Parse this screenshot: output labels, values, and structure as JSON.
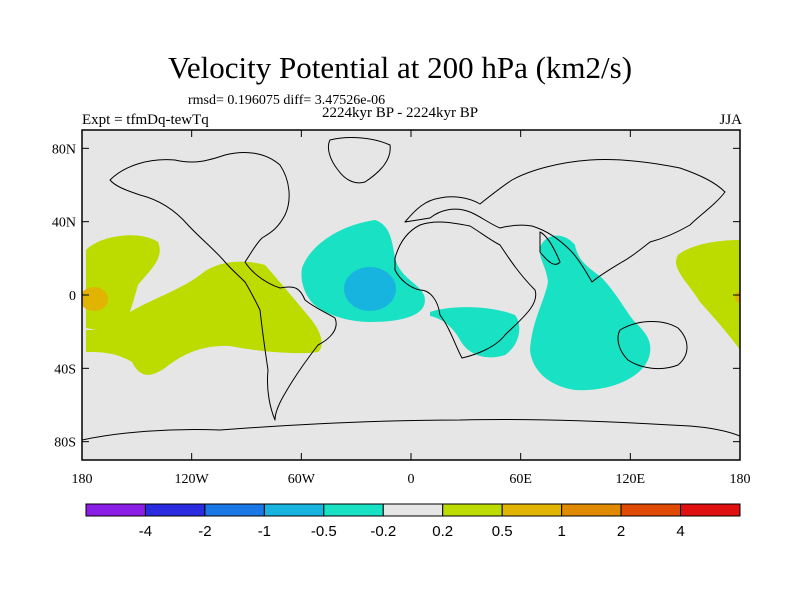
{
  "title": "Velocity Potential at 200 hPa (km2/s)",
  "stats": "rmsd= 0.196075 diff= 3.47526e-06",
  "period": "2224kyr BP - 2224kyr BP",
  "experiment": "Expt = tfmDq-tewTq",
  "season": "JJA",
  "map": {
    "projection": "cylindrical equidistant",
    "lon_range": [
      -180,
      180
    ],
    "lat_range": [
      -90,
      90
    ],
    "background_color": "#e6e6e6",
    "lat_ticks": [
      {
        "value": 80,
        "label": "80N"
      },
      {
        "value": 40,
        "label": "40N"
      },
      {
        "value": 0,
        "label": "0"
      },
      {
        "value": -40,
        "label": "40S"
      },
      {
        "value": -80,
        "label": "80S"
      }
    ],
    "lon_ticks": [
      {
        "value": -180,
        "label": "180"
      },
      {
        "value": -120,
        "label": "120W"
      },
      {
        "value": -60,
        "label": "60W"
      },
      {
        "value": 0,
        "label": "0"
      },
      {
        "value": 60,
        "label": "60E"
      },
      {
        "value": 120,
        "label": "120E"
      },
      {
        "value": 180,
        "label": "180"
      }
    ]
  },
  "colorbar": {
    "colors": [
      "#8a1ee6",
      "#2a2ae0",
      "#1a78e6",
      "#17b4e0",
      "#19e1c4",
      "#e6e6e6",
      "#bcdc00",
      "#e0b400",
      "#e08a00",
      "#e04a00",
      "#e01010"
    ],
    "labels": [
      "-4",
      "-2",
      "-1",
      "-0.5",
      "-0.2",
      "0.2",
      "0.5",
      "1",
      "2",
      "4"
    ]
  },
  "chart_data": {
    "type": "heatmap",
    "variable": "Velocity Potential at 200 hPa",
    "units": "km2/s",
    "levels": [
      -4,
      -2,
      -1,
      -0.5,
      -0.2,
      0.2,
      0.5,
      1,
      2,
      4
    ],
    "regions": [
      {
        "name": "Central Pacific positive anomaly",
        "level_range": [
          0.2,
          0.5
        ],
        "lon": [
          -180,
          -150
        ],
        "lat": [
          -15,
          25
        ]
      },
      {
        "name": "Central Pacific positive core",
        "level_range": [
          0.5,
          1
        ],
        "lon": [
          -180,
          -176
        ],
        "lat": [
          -3,
          4
        ]
      },
      {
        "name": "Eastern Pacific / South America positive anomaly",
        "level_range": [
          0.2,
          0.5
        ],
        "lon": [
          -155,
          -75
        ],
        "lat": [
          -35,
          15
        ]
      },
      {
        "name": "Tropical Atlantic negative anomaly",
        "level_range": [
          -0.5,
          -0.2
        ],
        "lon": [
          -55,
          -5
        ],
        "lat": [
          -10,
          30
        ]
      },
      {
        "name": "Tropical Atlantic negative core",
        "level_range": [
          -1,
          -0.5
        ],
        "lon": [
          -30,
          -15
        ],
        "lat": [
          -5,
          10
        ]
      },
      {
        "name": "Southwest Indian Ocean negative anomaly",
        "level_range": [
          -0.5,
          -0.2
        ],
        "lon": [
          15,
          55
        ],
        "lat": [
          -25,
          -5
        ]
      },
      {
        "name": "Indian Ocean negative anomaly",
        "level_range": [
          -0.5,
          -0.2
        ],
        "lon": [
          65,
          120
        ],
        "lat": [
          -45,
          30
        ]
      },
      {
        "name": "Western Pacific positive anomaly",
        "level_range": [
          0.2,
          0.5
        ],
        "lon": [
          145,
          180
        ],
        "lat": [
          -25,
          25
        ]
      },
      {
        "name": "Western Pacific positive core",
        "level_range": [
          0.5,
          1
        ],
        "lon": [
          177,
          180
        ],
        "lat": [
          -3,
          2
        ]
      }
    ]
  }
}
